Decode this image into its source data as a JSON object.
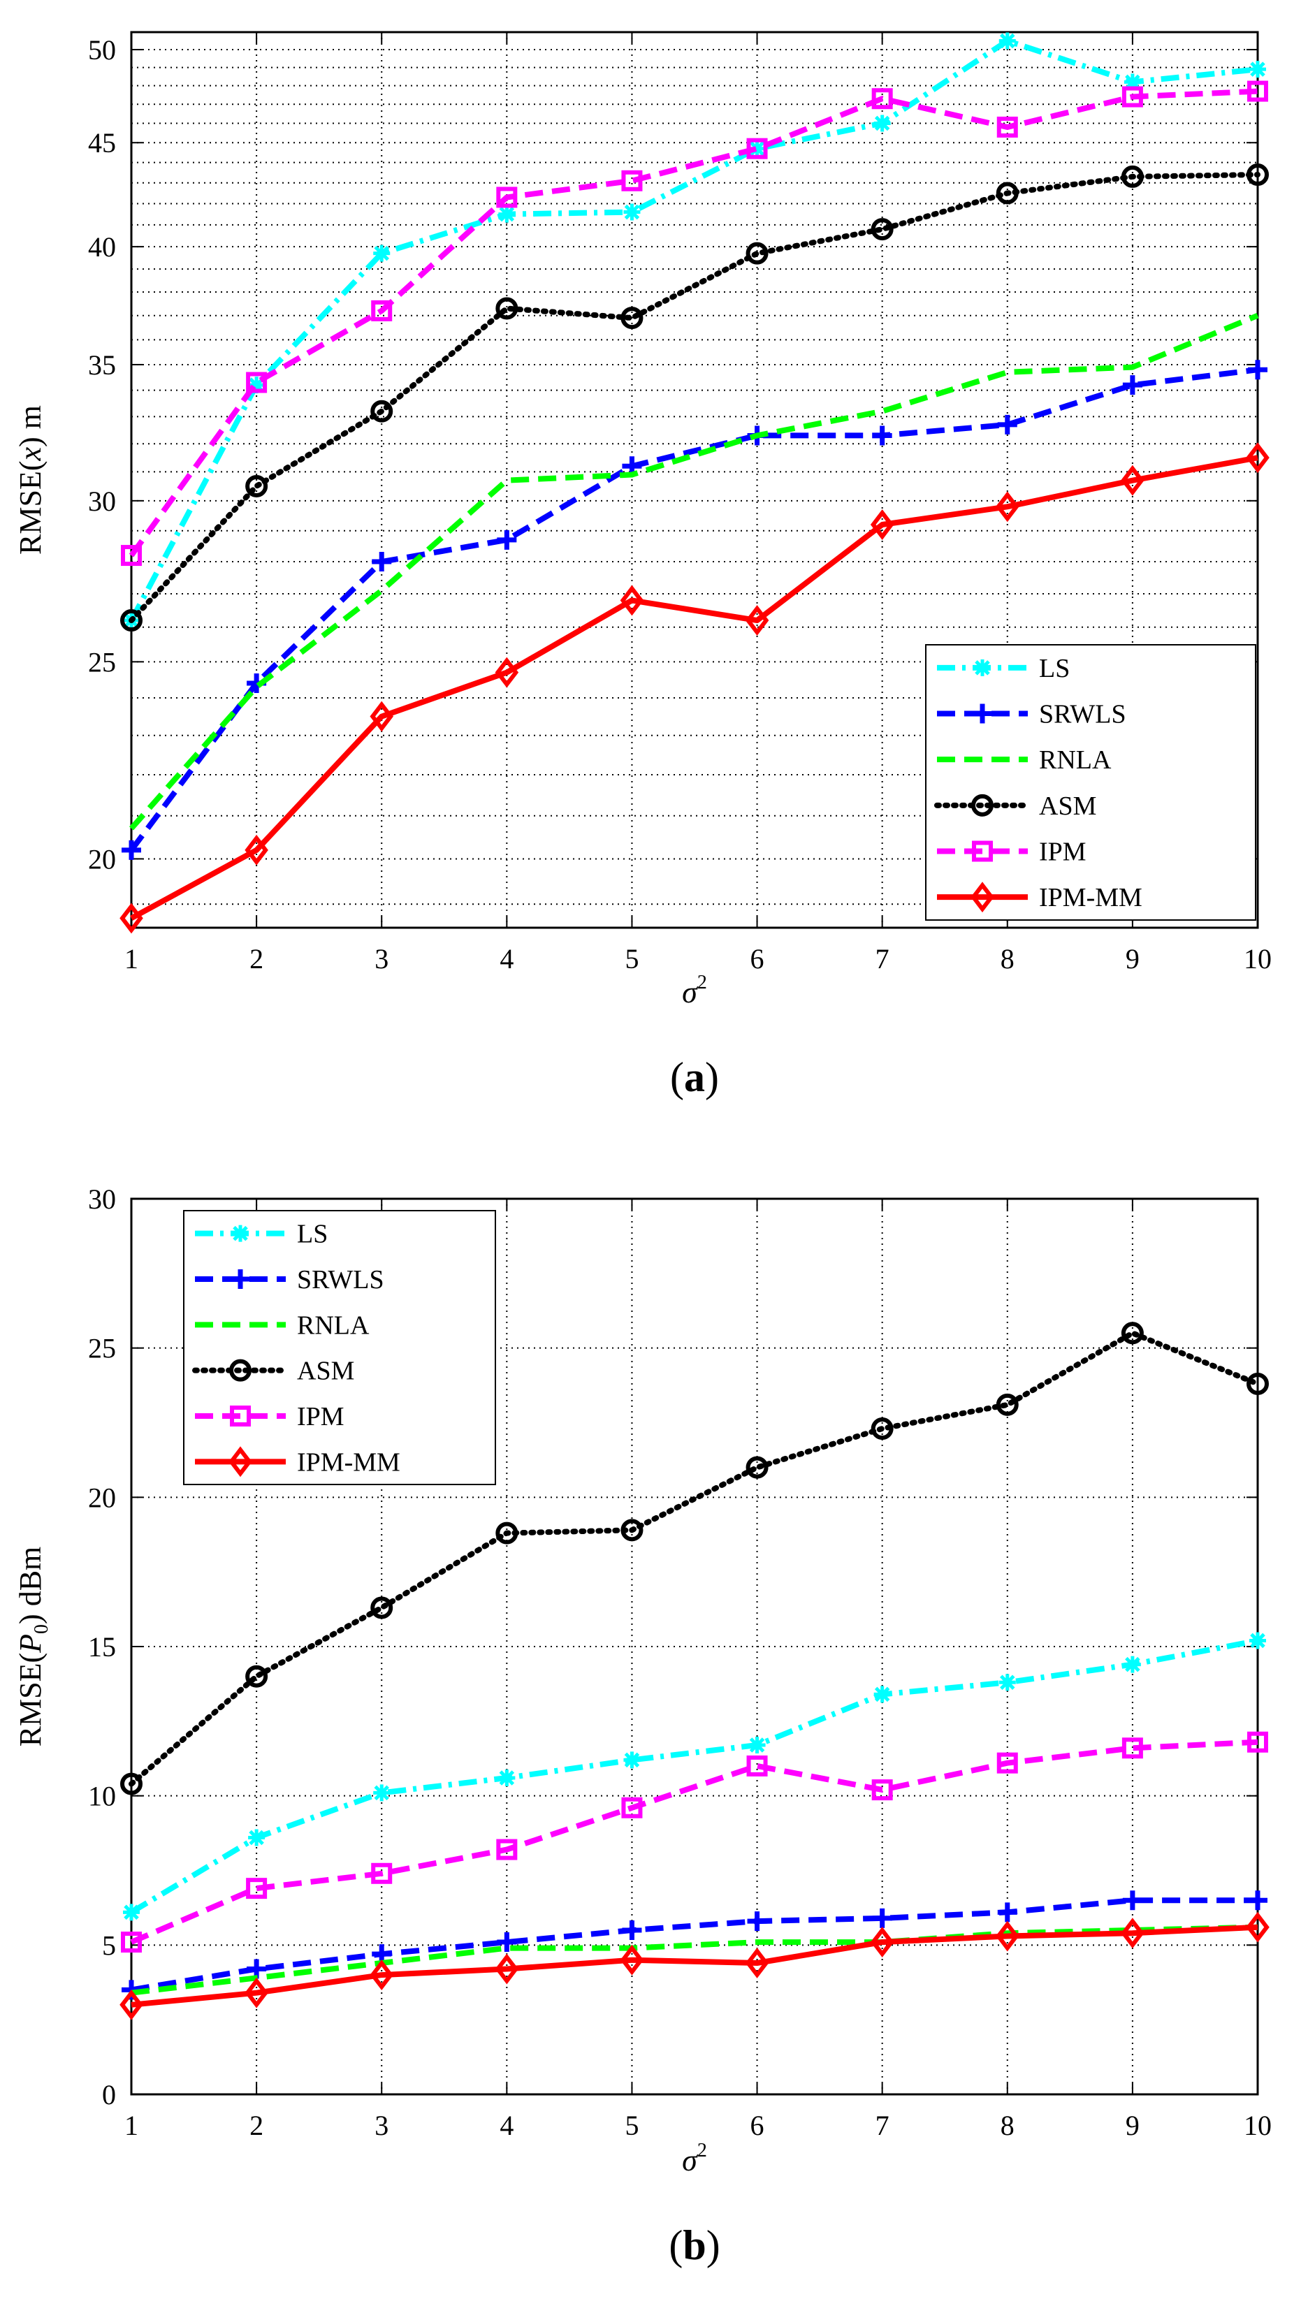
{
  "chart_data": [
    {
      "type": "line",
      "panel": "a",
      "panel_label": {
        "open": "(",
        "letter": "a",
        "close": ")"
      },
      "ylabel": {
        "prefix": "RMSE(",
        "var": "x",
        "suffix": ")  m"
      },
      "xlabel": {
        "sym": "σ",
        "sup": "2"
      },
      "yscale": "log",
      "xlim": [
        1,
        10
      ],
      "ylim": [
        18.5,
        51
      ],
      "xticks": [
        1,
        2,
        3,
        4,
        5,
        6,
        7,
        8,
        9,
        10
      ],
      "yticks": [
        20,
        25,
        30,
        35,
        40,
        45,
        50
      ],
      "yminor": [
        19,
        21,
        22,
        23,
        24,
        26,
        27,
        28,
        29,
        31,
        32,
        33,
        34,
        36,
        37,
        38,
        39,
        41,
        42,
        43,
        44,
        46,
        47,
        48,
        49
      ],
      "grid": true,
      "legend_position": "bottom-right",
      "x": [
        1,
        2,
        3,
        4,
        5,
        6,
        7,
        8,
        9,
        10
      ],
      "series": [
        {
          "name": "LS",
          "values": [
            26.2,
            34.2,
            39.7,
            41.5,
            41.6,
            44.7,
            46.0,
            50.5,
            48.2,
            48.9
          ]
        },
        {
          "name": "SRWLS",
          "values": [
            20.2,
            24.4,
            28.0,
            28.7,
            31.2,
            32.3,
            32.3,
            32.7,
            34.2,
            34.8
          ]
        },
        {
          "name": "RNLA",
          "values": [
            20.7,
            24.3,
            27.1,
            30.7,
            30.9,
            32.3,
            33.2,
            34.7,
            34.9,
            37.0
          ]
        },
        {
          "name": "ASM",
          "values": [
            26.2,
            30.5,
            33.2,
            37.3,
            36.9,
            39.7,
            40.8,
            42.5,
            43.3,
            43.4
          ]
        },
        {
          "name": "IPM",
          "values": [
            28.2,
            34.3,
            37.2,
            42.3,
            43.1,
            44.7,
            47.3,
            45.8,
            47.4,
            47.7
          ]
        },
        {
          "name": "IPM-MM",
          "values": [
            18.7,
            20.2,
            23.5,
            24.7,
            26.8,
            26.2,
            29.2,
            29.8,
            30.7,
            31.5
          ]
        }
      ]
    },
    {
      "type": "line",
      "panel": "b",
      "panel_label": {
        "open": "(",
        "letter": "b",
        "close": ")"
      },
      "ylabel": {
        "prefix": "RMSE(",
        "var": "P",
        "sub": "0",
        "suffix": ")  dBm"
      },
      "xlabel": {
        "sym": "σ",
        "sup": "2"
      },
      "yscale": "linear",
      "xlim": [
        1,
        10
      ],
      "ylim": [
        0,
        30
      ],
      "xticks": [
        1,
        2,
        3,
        4,
        5,
        6,
        7,
        8,
        9,
        10
      ],
      "yticks": [
        0,
        5,
        10,
        15,
        20,
        25,
        30
      ],
      "grid": true,
      "legend_position": "top-left",
      "x": [
        1,
        2,
        3,
        4,
        5,
        6,
        7,
        8,
        9,
        10
      ],
      "series": [
        {
          "name": "LS",
          "values": [
            6.1,
            8.6,
            10.1,
            10.6,
            11.2,
            11.7,
            13.4,
            13.8,
            14.4,
            15.2
          ]
        },
        {
          "name": "SRWLS",
          "values": [
            3.5,
            4.2,
            4.7,
            5.1,
            5.5,
            5.8,
            5.9,
            6.1,
            6.5,
            6.5
          ]
        },
        {
          "name": "RNLA",
          "values": [
            3.4,
            3.9,
            4.4,
            4.9,
            4.9,
            5.1,
            5.1,
            5.4,
            5.5,
            5.6
          ]
        },
        {
          "name": "ASM",
          "values": [
            10.4,
            14.0,
            16.3,
            18.8,
            18.9,
            21.0,
            22.3,
            23.1,
            25.5,
            23.8
          ]
        },
        {
          "name": "IPM",
          "values": [
            5.1,
            6.9,
            7.4,
            8.2,
            9.6,
            11.0,
            10.2,
            11.1,
            11.6,
            11.8
          ]
        },
        {
          "name": "IPM-MM",
          "values": [
            3.0,
            3.4,
            4.0,
            4.2,
            4.5,
            4.4,
            5.1,
            5.3,
            5.4,
            5.6
          ]
        }
      ]
    }
  ],
  "styles": {
    "LS": {
      "color": "#00ffff",
      "dash": "dashdot",
      "marker": "asterisk"
    },
    "SRWLS": {
      "color": "#0000ff",
      "dash": "dash",
      "marker": "plus"
    },
    "RNLA": {
      "color": "#00ff00",
      "dash": "dash",
      "marker": "none"
    },
    "ASM": {
      "color": "#000000",
      "dash": "dot",
      "marker": "circle"
    },
    "IPM": {
      "color": "#ff00ff",
      "dash": "dash",
      "marker": "square"
    },
    "IPM-MM": {
      "color": "#ff0000",
      "dash": "solid",
      "marker": "diamond"
    }
  }
}
